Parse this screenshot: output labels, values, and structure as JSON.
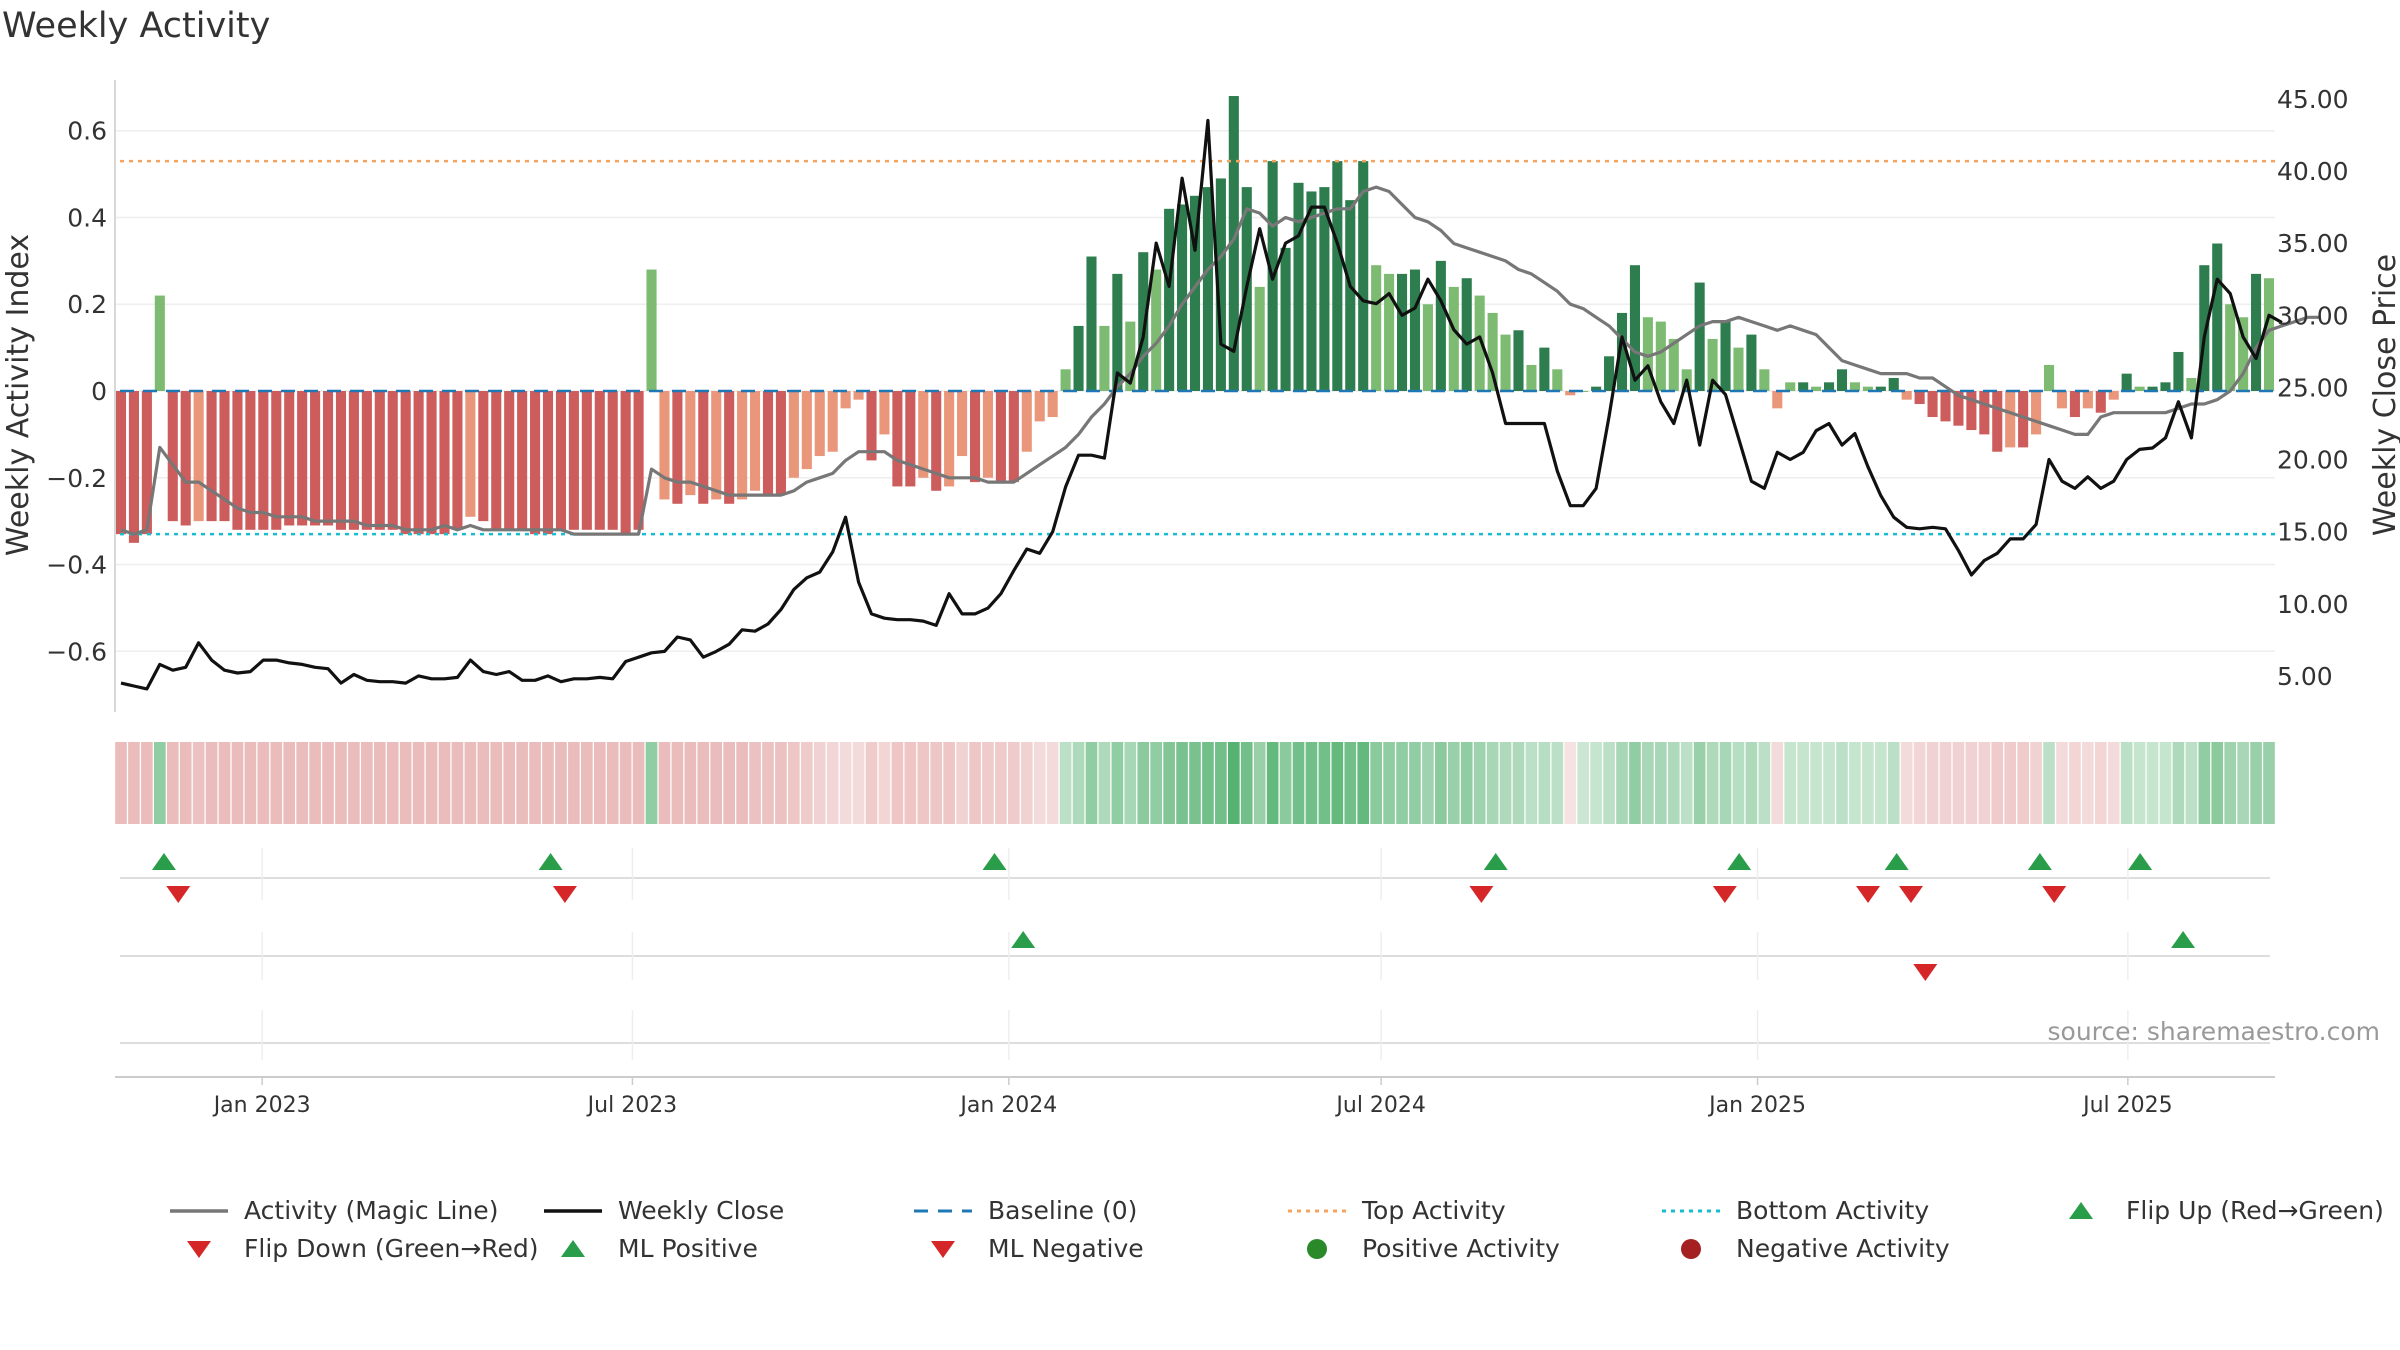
{
  "title": "Weekly Activity",
  "source_text": "source: sharemaestro.com",
  "colors": {
    "magic_line": "#777777",
    "close_line": "#111111",
    "baseline": "#1f77b4",
    "top_activity": "#f4a460",
    "bottom_activity": "#17becf",
    "green_strong": "#2e7d4f",
    "green_light": "#7dbb73",
    "red_strong": "#cd5c5c",
    "red_light": "#e9967a",
    "flip_up": "#2a9d4a",
    "flip_down": "#d62728",
    "positive_dot": "#2a8a2a",
    "negative_dot": "#a52020"
  },
  "legend": [
    {
      "label": "Activity (Magic Line)",
      "marker": "line-solid-gray"
    },
    {
      "label": "Weekly Close",
      "marker": "line-solid-black"
    },
    {
      "label": "Baseline (0)",
      "marker": "line-dashed-blue"
    },
    {
      "label": "Top Activity",
      "marker": "line-dotted-orange"
    },
    {
      "label": "Bottom Activity",
      "marker": "line-dotted-cyan"
    },
    {
      "label": "Flip Up (Red→Green)",
      "marker": "triangle-up-green"
    },
    {
      "label": "Flip Down (Green→Red)",
      "marker": "triangle-down-red"
    },
    {
      "label": "ML Positive",
      "marker": "triangle-up-green"
    },
    {
      "label": "ML Negative",
      "marker": "triangle-down-red"
    },
    {
      "label": "Positive Activity",
      "marker": "dot-green"
    },
    {
      "label": "Negative Activity",
      "marker": "dot-darkred"
    }
  ],
  "chart_data": {
    "type": "bar",
    "title": "Weekly Activity",
    "ylabel": "Weekly Activity Index",
    "y2label": "Weekly Close Price",
    "ylim": [
      -0.74,
      0.74
    ],
    "y2lim": [
      2.5,
      47.0
    ],
    "yticks": [
      0.6,
      0.4,
      0.2,
      0,
      -0.2,
      -0.4,
      -0.6
    ],
    "ytick_labels": [
      "0.6",
      "0.4",
      "0.2",
      "0",
      "−0.2",
      "−0.4",
      "−0.6"
    ],
    "y2ticks": [
      45,
      40,
      35,
      30,
      25,
      20,
      15,
      10,
      5
    ],
    "y2tick_labels": [
      "45.00",
      "40.00",
      "35.00",
      "30.00",
      "25.00",
      "20.00",
      "15.00",
      "10.00",
      "5.00"
    ],
    "x_start": "2022-10-24",
    "x_end": "2025-09-08",
    "xticks": [
      "2023-01-01",
      "2023-07-01",
      "2024-01-01",
      "2024-07-01",
      "2025-01-01",
      "2025-07-01"
    ],
    "xtick_labels": [
      "Jan 2023",
      "Jul 2023",
      "Jan 2024",
      "Jul 2024",
      "Jan 2025",
      "Jul 2025"
    ],
    "top_activity": 0.53,
    "bottom_activity": -0.33,
    "baseline": 0,
    "grid": true,
    "legend_position": "bottom",
    "activity_bars": [
      -0.33,
      -0.35,
      -0.33,
      0.22,
      -0.3,
      -0.31,
      -0.3,
      -0.3,
      -0.3,
      -0.32,
      -0.32,
      -0.32,
      -0.32,
      -0.31,
      -0.31,
      -0.31,
      -0.31,
      -0.32,
      -0.32,
      -0.32,
      -0.32,
      -0.32,
      -0.33,
      -0.33,
      -0.33,
      -0.33,
      -0.32,
      -0.29,
      -0.3,
      -0.32,
      -0.32,
      -0.32,
      -0.33,
      -0.33,
      -0.32,
      -0.32,
      -0.32,
      -0.32,
      -0.32,
      -0.33,
      -0.32,
      0.28,
      -0.25,
      -0.26,
      -0.24,
      -0.26,
      -0.25,
      -0.26,
      -0.25,
      -0.23,
      -0.24,
      -0.24,
      -0.2,
      -0.18,
      -0.15,
      -0.14,
      -0.04,
      -0.02,
      -0.16,
      -0.1,
      -0.22,
      -0.22,
      -0.2,
      -0.23,
      -0.22,
      -0.15,
      -0.21,
      -0.2,
      -0.21,
      -0.21,
      -0.14,
      -0.07,
      -0.06,
      0.05,
      0.15,
      0.31,
      0.15,
      0.27,
      0.16,
      0.32,
      0.28,
      0.42,
      0.43,
      0.45,
      0.47,
      0.49,
      0.68,
      0.47,
      0.24,
      0.53,
      0.33,
      0.48,
      0.46,
      0.47,
      0.53,
      0.44,
      0.53,
      0.29,
      0.27,
      0.27,
      0.28,
      0.2,
      0.3,
      0.24,
      0.26,
      0.22,
      0.18,
      0.13,
      0.14,
      0.06,
      0.1,
      0.05,
      -0.01,
      0.0,
      0.01,
      0.08,
      0.18,
      0.29,
      0.17,
      0.16,
      0.12,
      0.05,
      0.25,
      0.12,
      0.16,
      0.1,
      0.13,
      0.05,
      -0.04,
      0.02,
      0.02,
      0.01,
      0.02,
      0.05,
      0.02,
      0.01,
      0.01,
      0.03,
      -0.02,
      -0.03,
      -0.06,
      -0.07,
      -0.08,
      -0.09,
      -0.1,
      -0.14,
      -0.13,
      -0.13,
      -0.1,
      0.06,
      -0.04,
      -0.06,
      -0.04,
      -0.05,
      -0.02,
      0.04,
      0.01,
      0.01,
      0.02,
      0.09,
      0.03,
      0.29,
      0.34,
      0.2,
      0.17,
      0.27,
      0.26
    ],
    "magic_line": [
      -0.32,
      -0.33,
      -0.32,
      -0.13,
      -0.17,
      -0.21,
      -0.21,
      -0.23,
      -0.25,
      -0.27,
      -0.28,
      -0.28,
      -0.29,
      -0.29,
      -0.29,
      -0.3,
      -0.3,
      -0.3,
      -0.3,
      -0.31,
      -0.31,
      -0.31,
      -0.32,
      -0.32,
      -0.32,
      -0.31,
      -0.32,
      -0.31,
      -0.32,
      -0.32,
      -0.32,
      -0.32,
      -0.32,
      -0.32,
      -0.32,
      -0.33,
      -0.33,
      -0.33,
      -0.33,
      -0.33,
      -0.33,
      -0.18,
      -0.2,
      -0.21,
      -0.21,
      -0.22,
      -0.23,
      -0.24,
      -0.24,
      -0.24,
      -0.24,
      -0.24,
      -0.23,
      -0.21,
      -0.2,
      -0.19,
      -0.16,
      -0.14,
      -0.14,
      -0.14,
      -0.16,
      -0.17,
      -0.18,
      -0.19,
      -0.2,
      -0.2,
      -0.2,
      -0.21,
      -0.21,
      -0.21,
      -0.19,
      -0.17,
      -0.15,
      -0.13,
      -0.1,
      -0.06,
      -0.03,
      0.01,
      0.04,
      0.08,
      0.11,
      0.15,
      0.2,
      0.24,
      0.28,
      0.31,
      0.35,
      0.42,
      0.41,
      0.38,
      0.4,
      0.39,
      0.4,
      0.41,
      0.42,
      0.42,
      0.46,
      0.47,
      0.46,
      0.43,
      0.4,
      0.39,
      0.37,
      0.34,
      0.33,
      0.32,
      0.31,
      0.3,
      0.28,
      0.27,
      0.25,
      0.23,
      0.2,
      0.19,
      0.17,
      0.15,
      0.12,
      0.09,
      0.08,
      0.09,
      0.11,
      0.13,
      0.15,
      0.16,
      0.16,
      0.17,
      0.16,
      0.15,
      0.14,
      0.15,
      0.14,
      0.13,
      0.1,
      0.07,
      0.06,
      0.05,
      0.04,
      0.04,
      0.04,
      0.03,
      0.03,
      0.01,
      -0.01,
      -0.02,
      -0.03,
      -0.04,
      -0.05,
      -0.06,
      -0.07,
      -0.08,
      -0.09,
      -0.1,
      -0.1,
      -0.06,
      -0.05,
      -0.05,
      -0.05,
      -0.05,
      -0.05,
      -0.04,
      -0.03,
      -0.03,
      -0.02,
      0.0,
      0.04,
      0.1,
      0.14,
      0.15,
      0.16,
      0.17,
      0.17
    ],
    "weekly_close": [
      4.5,
      4.3,
      4.1,
      5.8,
      5.4,
      5.6,
      7.3,
      6.1,
      5.4,
      5.2,
      5.3,
      6.1,
      6.1,
      5.9,
      5.8,
      5.6,
      5.5,
      4.5,
      5.1,
      4.7,
      4.6,
      4.6,
      4.5,
      5.0,
      4.8,
      4.8,
      4.9,
      6.1,
      5.3,
      5.1,
      5.3,
      4.7,
      4.7,
      5.0,
      4.6,
      4.8,
      4.8,
      4.9,
      4.8,
      6.0,
      6.3,
      6.6,
      6.7,
      7.7,
      7.5,
      6.3,
      6.7,
      7.2,
      8.2,
      8.1,
      8.6,
      9.6,
      11.0,
      11.8,
      12.2,
      13.6,
      16.0,
      11.5,
      9.3,
      9.0,
      8.9,
      8.9,
      8.8,
      8.5,
      10.7,
      9.3,
      9.3,
      9.7,
      10.7,
      12.3,
      13.8,
      13.5,
      15.0,
      18.1,
      20.3,
      20.3,
      20.1,
      26.0,
      25.3,
      28.5,
      35.0,
      32.0,
      39.5,
      34.5,
      43.5,
      28.0,
      27.5,
      32.0,
      36.0,
      32.5,
      35.0,
      35.5,
      37.5,
      37.5,
      35.0,
      32.0,
      31.0,
      30.8,
      31.5,
      30.0,
      30.5,
      32.5,
      31.0,
      29.0,
      28.0,
      28.5,
      26.0,
      22.5,
      22.5,
      22.5,
      22.5,
      19.2,
      16.8,
      16.8,
      18.0,
      23.0,
      28.5,
      25.5,
      26.5,
      24.0,
      22.5,
      25.5,
      21.0,
      25.5,
      24.5,
      21.5,
      18.5,
      18.0,
      20.5,
      20.0,
      20.5,
      22.0,
      22.5,
      21.0,
      21.8,
      19.5,
      17.5,
      16.0,
      15.3,
      15.2,
      15.3,
      15.2,
      13.7,
      12.0,
      13.0,
      13.5,
      14.5,
      14.5,
      15.5,
      20.0,
      18.5,
      18.0,
      18.8,
      18.0,
      18.5,
      20.0,
      20.7,
      20.8,
      21.5,
      24.0,
      21.5,
      28.5,
      32.5,
      31.5,
      28.5,
      27.0,
      30.0,
      29.5
    ],
    "strip_intensity": [
      -0.45,
      -0.45,
      -0.45,
      0.5,
      -0.45,
      -0.45,
      -0.4,
      -0.45,
      -0.45,
      -0.45,
      -0.45,
      -0.45,
      -0.45,
      -0.45,
      -0.45,
      -0.45,
      -0.45,
      -0.45,
      -0.45,
      -0.45,
      -0.45,
      -0.45,
      -0.45,
      -0.45,
      -0.45,
      -0.45,
      -0.45,
      -0.45,
      -0.45,
      -0.45,
      -0.45,
      -0.45,
      -0.45,
      -0.45,
      -0.45,
      -0.45,
      -0.45,
      -0.45,
      -0.45,
      -0.45,
      -0.45,
      0.5,
      -0.45,
      -0.45,
      -0.45,
      -0.45,
      -0.45,
      -0.45,
      -0.45,
      -0.4,
      -0.4,
      -0.4,
      -0.35,
      -0.3,
      -0.25,
      -0.2,
      -0.15,
      -0.15,
      -0.3,
      -0.2,
      -0.35,
      -0.35,
      -0.35,
      -0.35,
      -0.35,
      -0.25,
      -0.35,
      -0.3,
      -0.3,
      -0.3,
      -0.25,
      -0.15,
      -0.15,
      0.2,
      0.3,
      0.5,
      0.3,
      0.5,
      0.35,
      0.55,
      0.5,
      0.6,
      0.65,
      0.65,
      0.7,
      0.7,
      0.9,
      0.7,
      0.45,
      0.8,
      0.55,
      0.7,
      0.7,
      0.7,
      0.8,
      0.7,
      0.8,
      0.55,
      0.5,
      0.5,
      0.5,
      0.4,
      0.55,
      0.45,
      0.5,
      0.4,
      0.35,
      0.3,
      0.3,
      0.2,
      0.25,
      0.2,
      -0.1,
      0.1,
      0.15,
      0.2,
      0.35,
      0.5,
      0.35,
      0.35,
      0.3,
      0.2,
      0.45,
      0.3,
      0.35,
      0.25,
      0.3,
      0.2,
      -0.15,
      0.15,
      0.15,
      0.15,
      0.15,
      0.2,
      0.15,
      0.15,
      0.15,
      0.2,
      -0.15,
      -0.2,
      -0.25,
      -0.25,
      -0.25,
      -0.25,
      -0.25,
      -0.3,
      -0.3,
      -0.3,
      -0.25,
      0.2,
      -0.15,
      -0.2,
      -0.15,
      -0.2,
      -0.15,
      0.2,
      0.15,
      0.15,
      0.15,
      0.3,
      0.2,
      0.5,
      0.55,
      0.4,
      0.35,
      0.45,
      0.45
    ],
    "flip_up_dates": [
      "2022-11-14",
      "2023-05-22",
      "2023-12-25",
      "2024-08-26",
      "2024-12-23",
      "2025-03-10",
      "2025-05-19",
      "2025-07-07"
    ],
    "flip_down_dates": [
      "2022-11-21",
      "2023-05-29",
      "2024-08-19",
      "2024-12-16",
      "2025-02-24",
      "2025-03-17",
      "2025-05-26"
    ],
    "ml_positive_dates": [
      "2024-01-08",
      "2025-07-28"
    ],
    "ml_negative_dates": [
      "2025-03-24"
    ]
  }
}
